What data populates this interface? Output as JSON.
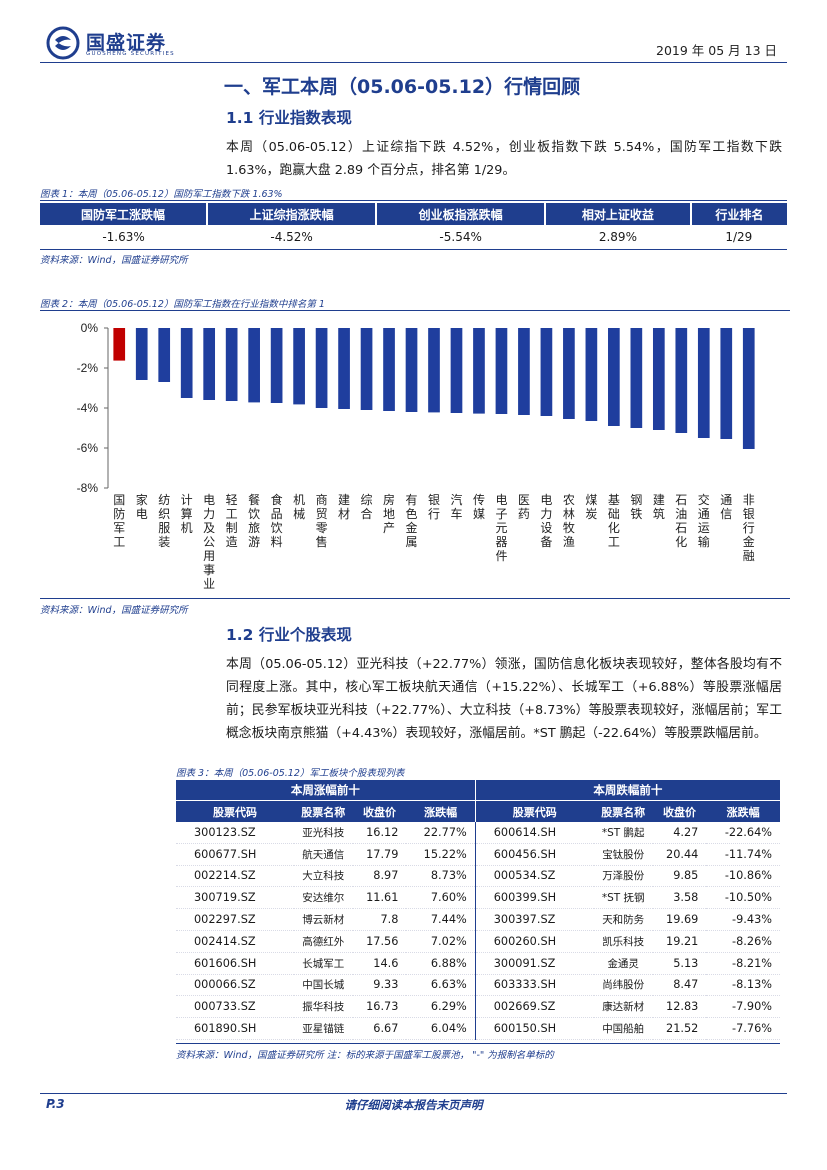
{
  "header": {
    "brand": "国盛证券",
    "brand_sub": "GUOSHENG SECURITIES",
    "date": "2019 年 05 月 13 日"
  },
  "section1": {
    "title": "一、军工本周（05.06-05.12）行情回顾",
    "sub1_title": "1.1 行业指数表现",
    "sub1_para": "本周（05.06-05.12）上证综指下跌 4.52%，创业板指数下跌 5.54%，国防军工指数下跌 1.63%，跑赢大盘 2.89 个百分点，排名第 1/29。",
    "table1": {
      "caption": "图表 1：本周（05.06-05.12）国防军工指数下跌 1.63%",
      "headers": [
        "国防军工涨跌幅",
        "上证综指涨跌幅",
        "创业板指涨跌幅",
        "相对上证收益",
        "行业排名"
      ],
      "row": [
        "-1.63%",
        "-4.52%",
        "-5.54%",
        "2.89%",
        "1/29"
      ],
      "source": "资料来源：Wind，国盛证券研究所"
    },
    "chart_caption": "图表 2：本周（05.06-05.12）国防军工指数在行业指数中排名第 1",
    "chart_source": "资料来源：Wind，国盛证券研究所",
    "sub2_title": "1.2 行业个股表现",
    "sub2_para": "本周（05.06-05.12）亚光科技（+22.77%）领涨，国防信息化板块表现较好，整体各股均有不同程度上涨。其中，核心军工板块航天通信（+15.22%）、长城军工（+6.88%）等股票涨幅居前；民参军板块亚光科技（+22.77%）、大立科技（+8.73%）等股票表现较好，涨幅居前；军工概念板块南京熊猫（+4.43%）表现较好，涨幅居前。*ST 鹏起（-22.64%）等股票跌幅居前。"
  },
  "chart_data": {
    "type": "bar",
    "categories": [
      "国防军工",
      "家电",
      "纺织服装",
      "计算机",
      "电力及公用事业",
      "轻工制造",
      "餐饮旅游",
      "食品饮料",
      "机械",
      "商贸零售",
      "建材",
      "综合",
      "房地产",
      "有色金属",
      "银行",
      "汽车",
      "传媒",
      "电子元器件",
      "医药",
      "电力设备",
      "农林牧渔",
      "煤炭",
      "基础化工",
      "钢铁",
      "建筑",
      "石油石化",
      "交通运输",
      "通信",
      "非银行金融"
    ],
    "values": [
      -1.63,
      -2.6,
      -2.7,
      -3.5,
      -3.6,
      -3.65,
      -3.72,
      -3.75,
      -3.82,
      -4.0,
      -4.05,
      -4.1,
      -4.15,
      -4.2,
      -4.22,
      -4.25,
      -4.28,
      -4.3,
      -4.35,
      -4.4,
      -4.55,
      -4.65,
      -4.9,
      -5.0,
      -5.1,
      -5.25,
      -5.5,
      -5.55,
      -6.05
    ],
    "yticks": [
      "0%",
      "-2%",
      "-4%",
      "-6%",
      "-8%"
    ],
    "ylim": [
      -8,
      0
    ],
    "colors": {
      "highlight": "#c00000",
      "default": "#1f3e9e"
    }
  },
  "table3": {
    "caption": "图表 3：本周（05.06-05.12）军工板块个股表现列表",
    "gain_title": "本周涨幅前十",
    "loss_title": "本周跌幅前十",
    "headers": [
      "股票代码",
      "股票名称",
      "收盘价",
      "涨跌幅",
      "股票代码",
      "股票名称",
      "收盘价",
      "涨跌幅"
    ],
    "rows": [
      [
        "300123.SZ",
        "亚光科技",
        "16.12",
        "22.77%",
        "600614.SH",
        "*ST 鹏起",
        "4.27",
        "-22.64%"
      ],
      [
        "600677.SH",
        "航天通信",
        "17.79",
        "15.22%",
        "600456.SH",
        "宝钛股份",
        "20.44",
        "-11.74%"
      ],
      [
        "002214.SZ",
        "大立科技",
        "8.97",
        "8.73%",
        "000534.SZ",
        "万泽股份",
        "9.85",
        "-10.86%"
      ],
      [
        "300719.SZ",
        "安达维尔",
        "11.61",
        "7.60%",
        "600399.SH",
        "*ST 抚钢",
        "3.58",
        "-10.50%"
      ],
      [
        "002297.SZ",
        "博云新材",
        "7.8",
        "7.44%",
        "300397.SZ",
        "天和防务",
        "19.69",
        "-9.43%"
      ],
      [
        "002414.SZ",
        "高德红外",
        "17.56",
        "7.02%",
        "600260.SH",
        "凯乐科技",
        "19.21",
        "-8.26%"
      ],
      [
        "601606.SH",
        "长城军工",
        "14.6",
        "6.88%",
        "300091.SZ",
        "金通灵",
        "5.13",
        "-8.21%"
      ],
      [
        "000066.SZ",
        "中国长城",
        "9.33",
        "6.63%",
        "603333.SH",
        "尚纬股份",
        "8.47",
        "-8.13%"
      ],
      [
        "000733.SZ",
        "振华科技",
        "16.73",
        "6.29%",
        "002669.SZ",
        "康达新材",
        "12.83",
        "-7.90%"
      ],
      [
        "601890.SH",
        "亚星锚链",
        "6.67",
        "6.04%",
        "600150.SH",
        "中国船舶",
        "21.52",
        "-7.76%"
      ]
    ],
    "source": "资料来源：Wind，国盛证券研究所 注：标的来源于国盛军工股票池， \"-\" 为报制名单标的"
  },
  "footer": {
    "page": "P.3",
    "disclaimer": "请仔细阅读本报告末页声明"
  }
}
